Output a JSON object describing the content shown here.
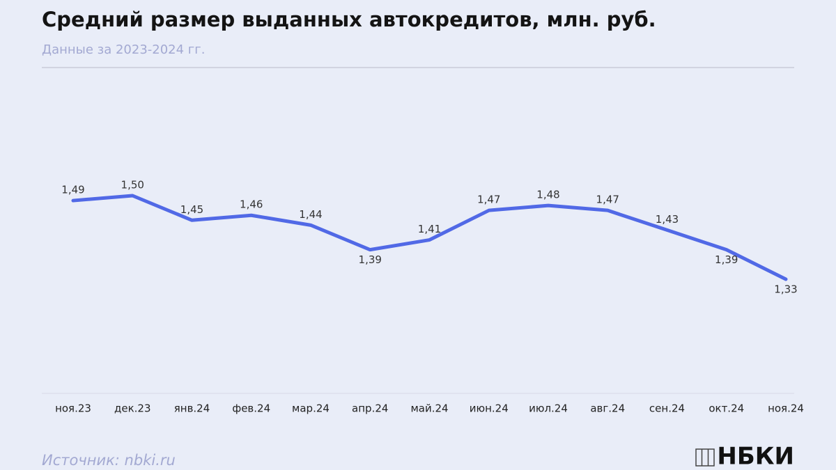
{
  "chart_data": {
    "type": "line",
    "title": "Средний размер выданных автокредитов, млн. руб.",
    "subtitle": "Данные за 2023-2024 гг.",
    "categories": [
      "ноя.23",
      "дек.23",
      "янв.24",
      "фев.24",
      "мар.24",
      "апр.24",
      "май.24",
      "июн.24",
      "июл.24",
      "авг.24",
      "сен.24",
      "окт.24",
      "ноя.24"
    ],
    "series": [
      {
        "color": "#5169e6",
        "values": [
          1.49,
          1.5,
          1.45,
          1.46,
          1.44,
          1.39,
          1.41,
          1.47,
          1.48,
          1.47,
          1.43,
          1.39,
          1.33
        ],
        "value_labels": [
          "1,49",
          "1,50",
          "1,45",
          "1,46",
          "1,44",
          "1,39",
          "1,41",
          "1,47",
          "1,48",
          "1,47",
          "1,43",
          "1,39",
          "1,33"
        ]
      }
    ],
    "source": "Источник: nbki.ru",
    "brand": "НБКИ"
  }
}
